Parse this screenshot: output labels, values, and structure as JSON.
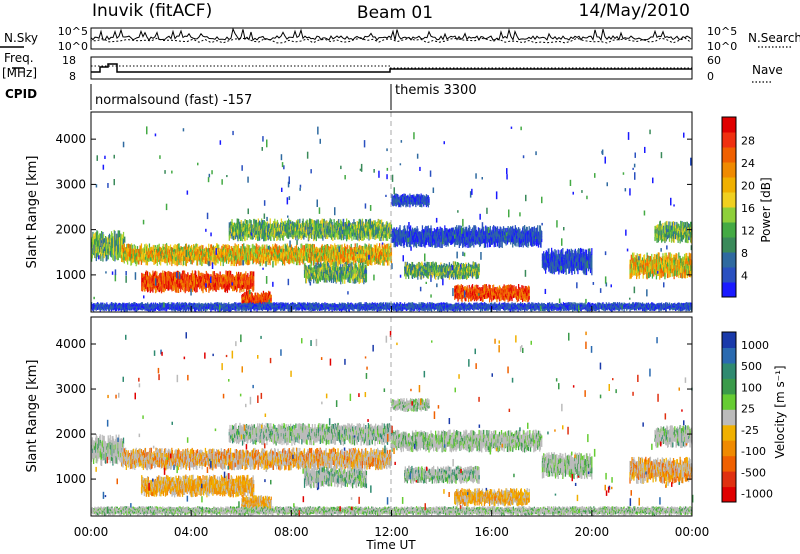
{
  "header": {
    "station": "Inuvik (fitACF)",
    "beam": "Beam 01",
    "date": "14/May/2010"
  },
  "top_panels": {
    "nsky_label": "N.Sky",
    "nsky_ticks": [
      "10^5",
      "10^0"
    ],
    "nsearch_label": "N.Search",
    "nsearch_ticks": [
      "10^5",
      "10^0"
    ],
    "freq_label": "Freq.",
    "freq_unit": "[MHz]",
    "freq_ticks": [
      "18",
      "8"
    ],
    "nave_label": "Nave",
    "nave_ticks": [
      "60",
      "0"
    ],
    "cpid_label": "CPID",
    "cpid_segments": [
      {
        "label": "normalsound (fast) -157",
        "start_hour": 0
      },
      {
        "label": "themis 3300",
        "start_hour": 12
      }
    ]
  },
  "chart_data": [
    {
      "type": "heatmap",
      "title": "",
      "xlabel": "Time UT",
      "ylabel": "Slant Range [km]",
      "xlim": [
        0,
        24
      ],
      "x_ticks": [
        "00:00",
        "04:00",
        "08:00",
        "12:00",
        "16:00",
        "20:00",
        "00:00"
      ],
      "ylim": [
        180,
        4600
      ],
      "y_ticks": [
        1000,
        2000,
        3000,
        4000
      ],
      "colorbar": {
        "label": "Power [dB]",
        "ticks": [
          "4",
          "8",
          "12",
          "16",
          "20",
          "24",
          "28"
        ],
        "colors": [
          "#1a1aff",
          "#2a50c0",
          "#2f6aa0",
          "#3a8a5a",
          "#44aa44",
          "#8ecf3a",
          "#f0d020",
          "#f0b000",
          "#f08a00",
          "#f06000",
          "#f03010",
          "#e00000"
        ]
      }
    },
    {
      "type": "heatmap",
      "title": "",
      "xlabel": "Time UT",
      "ylabel": "Slant Range [km]",
      "xlim": [
        0,
        24
      ],
      "x_ticks": [
        "00:00",
        "04:00",
        "08:00",
        "12:00",
        "16:00",
        "20:00",
        "00:00"
      ],
      "ylim": [
        180,
        4600
      ],
      "y_ticks": [
        1000,
        2000,
        3000,
        4000
      ],
      "colorbar": {
        "label": "Velocity [m s⁻¹]",
        "ticks": [
          "1000",
          "500",
          "100",
          "25",
          "-25",
          "-100",
          "-500",
          "-1000"
        ],
        "colors": [
          "#1a3aaa",
          "#2a6ab0",
          "#2f8a70",
          "#3a9a4a",
          "#66cc33",
          "#bbbbbb",
          "#f0b000",
          "#f08a00",
          "#f06000",
          "#e03010",
          "#e00000"
        ]
      }
    }
  ],
  "footer": {
    "time_label": "Time UT"
  }
}
